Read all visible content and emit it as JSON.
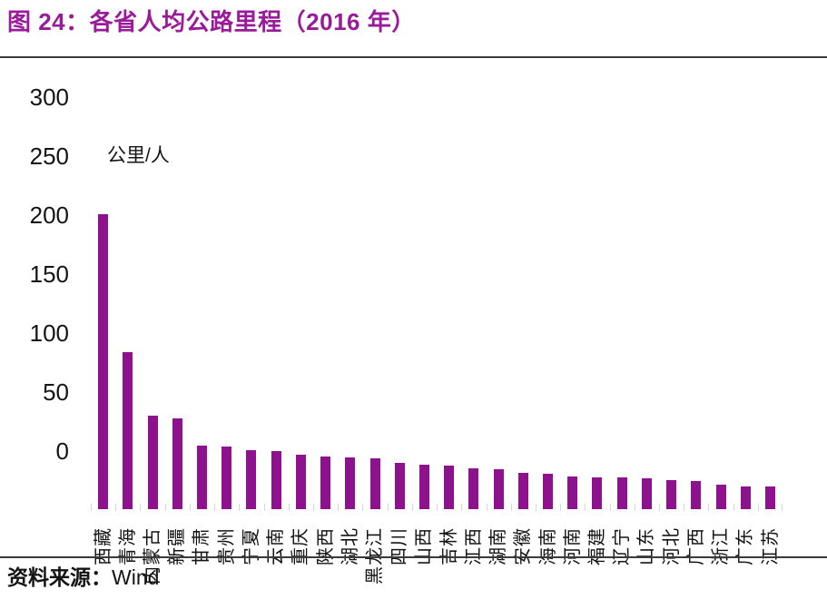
{
  "page": {
    "title": "图 24：各省人均公路里程（2016 年）",
    "source_label": "资料来源：",
    "source_value": "Wind"
  },
  "chart_data": {
    "type": "bar",
    "title": "各省人均公路里程（2016 年）",
    "figure_label": "图 24",
    "ylabel": "公里/人",
    "xlabel": "",
    "ylim": [
      0,
      300
    ],
    "yticks": [
      0,
      50,
      100,
      150,
      200,
      250,
      300
    ],
    "grid": false,
    "legend": false,
    "source": "Wind",
    "categories": [
      "西藏",
      "青海",
      "内蒙古",
      "新疆",
      "甘肃",
      "贵州",
      "宁夏",
      "云南",
      "重庆",
      "陕西",
      "湖北",
      "黑龙江",
      "四川",
      "山西",
      "吉林",
      "江西",
      "湖南",
      "安徽",
      "海南",
      "河南",
      "福建",
      "辽宁",
      "山东",
      "河北",
      "广西",
      "浙江",
      "广东",
      "江苏"
    ],
    "values": [
      250,
      133,
      79,
      77,
      54,
      53,
      50,
      49,
      46,
      45,
      44,
      43,
      39,
      38,
      37,
      35,
      34,
      31,
      30,
      28,
      27,
      27,
      26,
      25,
      24,
      21,
      19,
      19
    ]
  },
  "colors": {
    "title": "#9A1B9A",
    "bar": "#8E118D",
    "rule": "#3A3A3A",
    "axis_tick": "#D6D6D6"
  }
}
